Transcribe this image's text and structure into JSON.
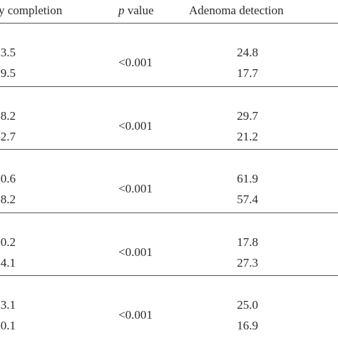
{
  "table": {
    "header": [
      "y completion",
      {
        "italic": "p",
        "text": "value"
      },
      "Adenoma detection"
    ],
    "rows": [
      {
        "completion": [
          "3.5",
          "9.5"
        ],
        "p": "<0.001",
        "detection": [
          "24.8",
          "17.7"
        ]
      },
      {
        "completion": [
          "8.2",
          "2.7"
        ],
        "p": "<0.001",
        "detection": [
          "29.7",
          "21.2"
        ]
      },
      {
        "completion": [
          "0.6",
          "8.2"
        ],
        "p": "<0.001",
        "detection": [
          "61.9",
          "57.4"
        ]
      },
      {
        "completion": [
          "0.2",
          "4.1"
        ],
        "p": "<0.001",
        "detection": [
          "17.8",
          "27.3"
        ]
      },
      {
        "completion": [
          "3.1",
          "0.1"
        ],
        "p": "<0.001",
        "detection": [
          "25.0",
          "16.9"
        ]
      }
    ]
  }
}
